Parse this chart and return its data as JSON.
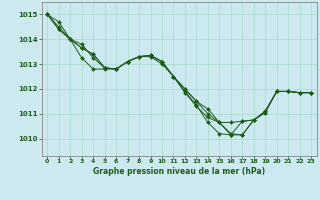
{
  "title": "Graphe pression niveau de la mer (hPa)",
  "bg_color": "#cde9f0",
  "grid_color": "#a8d8cc",
  "line_color": "#1e5c1e",
  "xlim": [
    -0.5,
    23.5
  ],
  "ylim": [
    1009.3,
    1015.5
  ],
  "yticks": [
    1010,
    1011,
    1012,
    1013,
    1014,
    1015
  ],
  "xticks": [
    0,
    1,
    2,
    3,
    4,
    5,
    6,
    7,
    8,
    9,
    10,
    11,
    12,
    13,
    14,
    15,
    16,
    17,
    18,
    19,
    20,
    21,
    22,
    23
  ],
  "xticklabels": [
    "0",
    "1",
    "2",
    "3",
    "4",
    "5",
    "6",
    "7",
    "8",
    "9",
    "10",
    "11",
    "12",
    "13",
    "14",
    "15",
    "16",
    "17",
    "18",
    "19",
    "20",
    "21",
    "22",
    "23"
  ],
  "series": [
    {
      "x": [
        0,
        1,
        2,
        3,
        4,
        5,
        6,
        7,
        8,
        9,
        10,
        11,
        12,
        13,
        14,
        15,
        16,
        17,
        18,
        19,
        20,
        21,
        22,
        23
      ],
      "y": [
        1015.0,
        1014.7,
        1014.0,
        1013.65,
        1013.4,
        1012.85,
        1012.8,
        1013.1,
        1013.3,
        1013.3,
        1013.0,
        1012.5,
        1012.0,
        1011.5,
        1011.0,
        1010.65,
        1010.15,
        1010.7,
        1010.75,
        1011.1,
        1011.9,
        1011.9,
        1011.85,
        1011.85
      ]
    },
    {
      "x": [
        0,
        1,
        2,
        3,
        4,
        5,
        6,
        7,
        8,
        9,
        10,
        11,
        12,
        13,
        14,
        15,
        16,
        17,
        18,
        19,
        20,
        21,
        22,
        23
      ],
      "y": [
        1015.0,
        1014.5,
        1014.0,
        1013.8,
        1013.25,
        1012.85,
        1012.8,
        1013.1,
        1013.3,
        1013.35,
        1013.1,
        1012.5,
        1012.0,
        1011.5,
        1011.2,
        1010.65,
        1010.2,
        1010.15,
        1010.75,
        1011.05,
        1011.9,
        1011.9,
        1011.85,
        1011.85
      ]
    },
    {
      "x": [
        0,
        1,
        2,
        3,
        4,
        5,
        6,
        7,
        8,
        9,
        10,
        11,
        12,
        13,
        14,
        15,
        16,
        17,
        18,
        19,
        20,
        21,
        22,
        23
      ],
      "y": [
        1015.0,
        1014.4,
        1014.0,
        1013.25,
        1012.8,
        1012.8,
        1012.8,
        1013.1,
        1013.3,
        1013.35,
        1013.1,
        1012.5,
        1011.9,
        1011.35,
        1010.65,
        1010.2,
        1010.15,
        1010.15,
        1010.75,
        1011.05,
        1011.9,
        1011.9,
        1011.85,
        1011.85
      ]
    },
    {
      "x": [
        0,
        1,
        2,
        3,
        4,
        5,
        6,
        7,
        8,
        9,
        10,
        11,
        12,
        13,
        14,
        15,
        16,
        17,
        18,
        19,
        20,
        21,
        22,
        23
      ],
      "y": [
        1015.0,
        1014.4,
        1014.0,
        1013.65,
        1013.4,
        1012.85,
        1012.8,
        1013.1,
        1013.3,
        1013.35,
        1013.1,
        1012.5,
        1011.85,
        1011.3,
        1010.85,
        1010.65,
        1010.65,
        1010.7,
        1010.75,
        1011.1,
        1011.9,
        1011.9,
        1011.85,
        1011.85
      ]
    }
  ]
}
